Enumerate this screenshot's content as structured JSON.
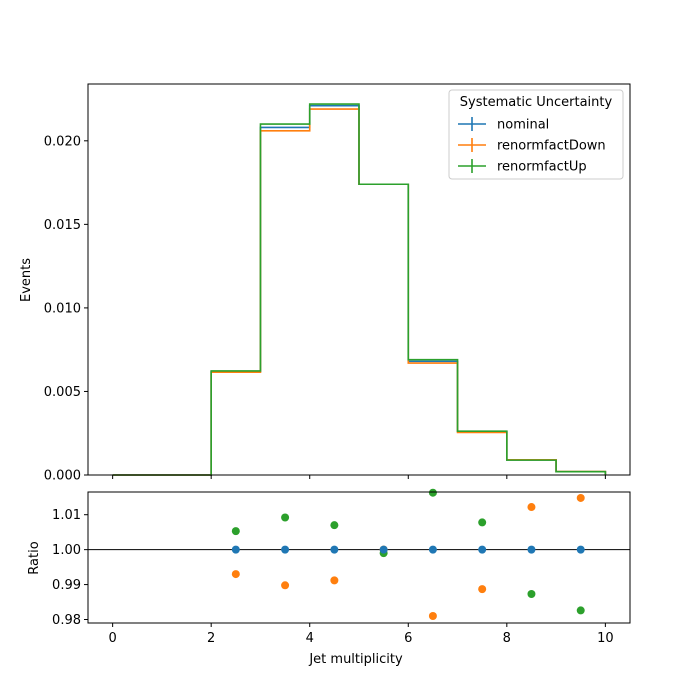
{
  "chart_data": [
    {
      "type": "line",
      "subtype": "step-histogram",
      "ylabel": "Events",
      "xlim": [
        -0.5,
        10.5
      ],
      "ylim": [
        0,
        0.0234
      ],
      "yticks": [
        "0.000",
        "0.005",
        "0.010",
        "0.015",
        "0.020"
      ],
      "bin_edges": [
        0,
        1,
        2,
        3,
        4,
        5,
        6,
        7,
        8,
        9,
        10
      ],
      "legend": {
        "title": "Systematic Uncertainty",
        "placement": "top-right"
      },
      "series": [
        {
          "name": "nominal",
          "color": "#1f77b4",
          "values": [
            0,
            0,
            0.0062,
            0.0208,
            0.0221,
            0.0174,
            0.0068,
            0.0026,
            0.0009,
            0.0002
          ]
        },
        {
          "name": "renormfactDown",
          "color": "#ff7f0e",
          "values": [
            0,
            0,
            0.00615,
            0.0206,
            0.0219,
            0.0174,
            0.0067,
            0.00255,
            0.00091,
            0.000203
          ]
        },
        {
          "name": "renormfactUp",
          "color": "#2ca02c",
          "values": [
            0,
            0,
            0.00623,
            0.021,
            0.0222,
            0.0174,
            0.0069,
            0.00262,
            0.00089,
            0.000197
          ]
        }
      ]
    },
    {
      "type": "scatter",
      "xlabel": "Jet multiplicity",
      "ylabel": "Ratio",
      "xlim": [
        -0.5,
        10.5
      ],
      "ylim": [
        0.979,
        1.0165
      ],
      "xticks": [
        "0",
        "2",
        "4",
        "6",
        "8",
        "10"
      ],
      "yticks": [
        "0.98",
        "0.99",
        "1.00",
        "1.01"
      ],
      "reference_line": 1.0,
      "x": [
        2.5,
        3.5,
        4.5,
        5.5,
        6.5,
        7.5,
        8.5,
        9.5
      ],
      "series": [
        {
          "name": "nominal",
          "color": "#1f77b4",
          "values": [
            1.0,
            1.0,
            1.0,
            1.0,
            1.0,
            1.0,
            1.0,
            1.0
          ]
        },
        {
          "name": "renormfactDown",
          "color": "#ff7f0e",
          "values": [
            0.993,
            0.9898,
            0.9912,
            1.0,
            0.981,
            0.9887,
            1.0122,
            1.0148
          ]
        },
        {
          "name": "renormfactUp",
          "color": "#2ca02c",
          "values": [
            1.0053,
            1.0092,
            1.007,
            0.999,
            1.0163,
            1.0078,
            0.9873,
            0.9826
          ]
        }
      ]
    }
  ]
}
